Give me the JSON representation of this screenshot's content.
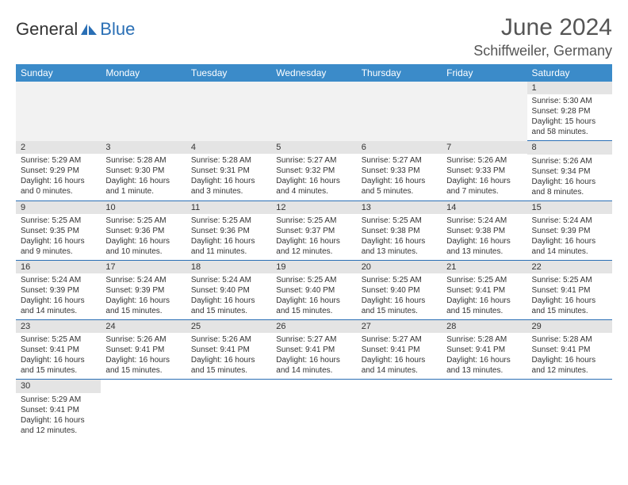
{
  "logo": {
    "word1": "General",
    "word2": "Blue"
  },
  "header": {
    "title": "June 2024",
    "location": "Schiffweiler, Germany"
  },
  "dow": [
    "Sunday",
    "Monday",
    "Tuesday",
    "Wednesday",
    "Thursday",
    "Friday",
    "Saturday"
  ],
  "colors": {
    "header_bg": "#3b8bc9",
    "accent": "#2a6fb5",
    "daynum_bg": "#e4e4e4",
    "text": "#333333"
  },
  "weeks": [
    [
      null,
      null,
      null,
      null,
      null,
      null,
      {
        "n": "1",
        "sr": "Sunrise: 5:30 AM",
        "ss": "Sunset: 9:28 PM",
        "d1": "Daylight: 15 hours",
        "d2": "and 58 minutes."
      }
    ],
    [
      {
        "n": "2",
        "sr": "Sunrise: 5:29 AM",
        "ss": "Sunset: 9:29 PM",
        "d1": "Daylight: 16 hours",
        "d2": "and 0 minutes."
      },
      {
        "n": "3",
        "sr": "Sunrise: 5:28 AM",
        "ss": "Sunset: 9:30 PM",
        "d1": "Daylight: 16 hours",
        "d2": "and 1 minute."
      },
      {
        "n": "4",
        "sr": "Sunrise: 5:28 AM",
        "ss": "Sunset: 9:31 PM",
        "d1": "Daylight: 16 hours",
        "d2": "and 3 minutes."
      },
      {
        "n": "5",
        "sr": "Sunrise: 5:27 AM",
        "ss": "Sunset: 9:32 PM",
        "d1": "Daylight: 16 hours",
        "d2": "and 4 minutes."
      },
      {
        "n": "6",
        "sr": "Sunrise: 5:27 AM",
        "ss": "Sunset: 9:33 PM",
        "d1": "Daylight: 16 hours",
        "d2": "and 5 minutes."
      },
      {
        "n": "7",
        "sr": "Sunrise: 5:26 AM",
        "ss": "Sunset: 9:33 PM",
        "d1": "Daylight: 16 hours",
        "d2": "and 7 minutes."
      },
      {
        "n": "8",
        "sr": "Sunrise: 5:26 AM",
        "ss": "Sunset: 9:34 PM",
        "d1": "Daylight: 16 hours",
        "d2": "and 8 minutes."
      }
    ],
    [
      {
        "n": "9",
        "sr": "Sunrise: 5:25 AM",
        "ss": "Sunset: 9:35 PM",
        "d1": "Daylight: 16 hours",
        "d2": "and 9 minutes."
      },
      {
        "n": "10",
        "sr": "Sunrise: 5:25 AM",
        "ss": "Sunset: 9:36 PM",
        "d1": "Daylight: 16 hours",
        "d2": "and 10 minutes."
      },
      {
        "n": "11",
        "sr": "Sunrise: 5:25 AM",
        "ss": "Sunset: 9:36 PM",
        "d1": "Daylight: 16 hours",
        "d2": "and 11 minutes."
      },
      {
        "n": "12",
        "sr": "Sunrise: 5:25 AM",
        "ss": "Sunset: 9:37 PM",
        "d1": "Daylight: 16 hours",
        "d2": "and 12 minutes."
      },
      {
        "n": "13",
        "sr": "Sunrise: 5:25 AM",
        "ss": "Sunset: 9:38 PM",
        "d1": "Daylight: 16 hours",
        "d2": "and 13 minutes."
      },
      {
        "n": "14",
        "sr": "Sunrise: 5:24 AM",
        "ss": "Sunset: 9:38 PM",
        "d1": "Daylight: 16 hours",
        "d2": "and 13 minutes."
      },
      {
        "n": "15",
        "sr": "Sunrise: 5:24 AM",
        "ss": "Sunset: 9:39 PM",
        "d1": "Daylight: 16 hours",
        "d2": "and 14 minutes."
      }
    ],
    [
      {
        "n": "16",
        "sr": "Sunrise: 5:24 AM",
        "ss": "Sunset: 9:39 PM",
        "d1": "Daylight: 16 hours",
        "d2": "and 14 minutes."
      },
      {
        "n": "17",
        "sr": "Sunrise: 5:24 AM",
        "ss": "Sunset: 9:39 PM",
        "d1": "Daylight: 16 hours",
        "d2": "and 15 minutes."
      },
      {
        "n": "18",
        "sr": "Sunrise: 5:24 AM",
        "ss": "Sunset: 9:40 PM",
        "d1": "Daylight: 16 hours",
        "d2": "and 15 minutes."
      },
      {
        "n": "19",
        "sr": "Sunrise: 5:25 AM",
        "ss": "Sunset: 9:40 PM",
        "d1": "Daylight: 16 hours",
        "d2": "and 15 minutes."
      },
      {
        "n": "20",
        "sr": "Sunrise: 5:25 AM",
        "ss": "Sunset: 9:40 PM",
        "d1": "Daylight: 16 hours",
        "d2": "and 15 minutes."
      },
      {
        "n": "21",
        "sr": "Sunrise: 5:25 AM",
        "ss": "Sunset: 9:41 PM",
        "d1": "Daylight: 16 hours",
        "d2": "and 15 minutes."
      },
      {
        "n": "22",
        "sr": "Sunrise: 5:25 AM",
        "ss": "Sunset: 9:41 PM",
        "d1": "Daylight: 16 hours",
        "d2": "and 15 minutes."
      }
    ],
    [
      {
        "n": "23",
        "sr": "Sunrise: 5:25 AM",
        "ss": "Sunset: 9:41 PM",
        "d1": "Daylight: 16 hours",
        "d2": "and 15 minutes."
      },
      {
        "n": "24",
        "sr": "Sunrise: 5:26 AM",
        "ss": "Sunset: 9:41 PM",
        "d1": "Daylight: 16 hours",
        "d2": "and 15 minutes."
      },
      {
        "n": "25",
        "sr": "Sunrise: 5:26 AM",
        "ss": "Sunset: 9:41 PM",
        "d1": "Daylight: 16 hours",
        "d2": "and 15 minutes."
      },
      {
        "n": "26",
        "sr": "Sunrise: 5:27 AM",
        "ss": "Sunset: 9:41 PM",
        "d1": "Daylight: 16 hours",
        "d2": "and 14 minutes."
      },
      {
        "n": "27",
        "sr": "Sunrise: 5:27 AM",
        "ss": "Sunset: 9:41 PM",
        "d1": "Daylight: 16 hours",
        "d2": "and 14 minutes."
      },
      {
        "n": "28",
        "sr": "Sunrise: 5:28 AM",
        "ss": "Sunset: 9:41 PM",
        "d1": "Daylight: 16 hours",
        "d2": "and 13 minutes."
      },
      {
        "n": "29",
        "sr": "Sunrise: 5:28 AM",
        "ss": "Sunset: 9:41 PM",
        "d1": "Daylight: 16 hours",
        "d2": "and 12 minutes."
      }
    ],
    [
      {
        "n": "30",
        "sr": "Sunrise: 5:29 AM",
        "ss": "Sunset: 9:41 PM",
        "d1": "Daylight: 16 hours",
        "d2": "and 12 minutes."
      },
      null,
      null,
      null,
      null,
      null,
      null
    ]
  ]
}
